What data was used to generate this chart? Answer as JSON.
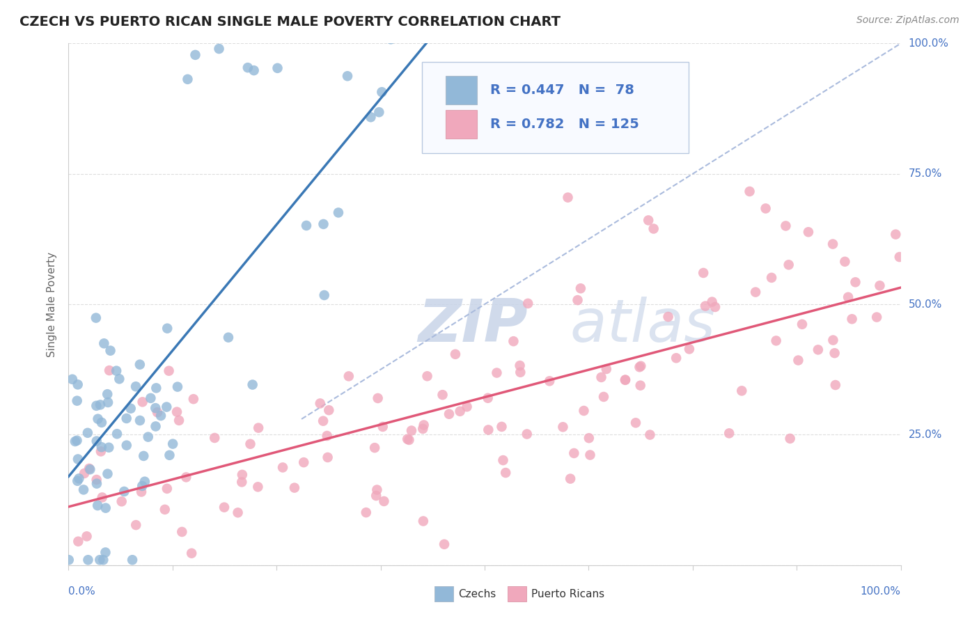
{
  "title": "CZECH VS PUERTO RICAN SINGLE MALE POVERTY CORRELATION CHART",
  "source": "Source: ZipAtlas.com",
  "ylabel": "Single Male Poverty",
  "czech_R": 0.447,
  "czech_N": 78,
  "puerto_rican_R": 0.782,
  "puerto_rican_N": 125,
  "czech_color": "#92b8d8",
  "czech_edge_color": "#6a9cc0",
  "puerto_rican_color": "#f0a8bc",
  "puerto_rican_edge_color": "#e07090",
  "czech_line_color": "#3a78b5",
  "puerto_rican_line_color": "#e05878",
  "diag_color": "#aabbdd",
  "background_color": "#ffffff",
  "grid_color": "#dddddd",
  "title_color": "#222222",
  "source_color": "#888888",
  "axis_label_color": "#4472c4",
  "ylabel_color": "#666666",
  "legend_text_color": "#4472c4",
  "watermark_zip_color": "#c8d4e8",
  "watermark_atlas_color": "#c8d4e8"
}
